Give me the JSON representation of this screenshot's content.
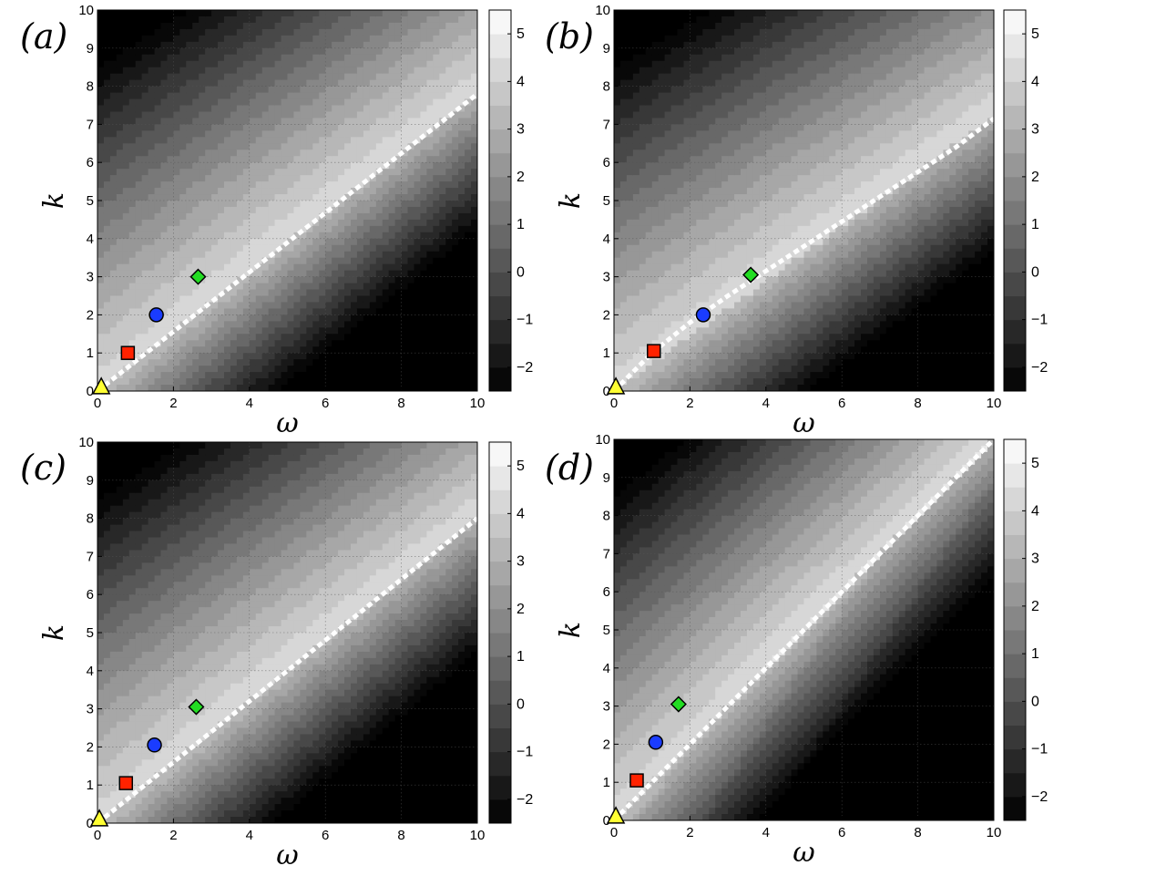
{
  "chart_data": [
    {
      "type": "heatmap",
      "panel_label": "(a)",
      "xlabel": "ω",
      "ylabel": "k",
      "xlim": [
        0,
        10
      ],
      "ylim": [
        0,
        10
      ],
      "x_ticks": [
        "0",
        "2",
        "4",
        "6",
        "8",
        "10"
      ],
      "y_ticks": [
        "0",
        "1",
        "2",
        "3",
        "4",
        "5",
        "6",
        "7",
        "8",
        "9",
        "10"
      ],
      "colorbar": {
        "range": [
          -2.5,
          5.5
        ],
        "ticks": [
          "−2",
          "−1",
          "0",
          "1",
          "2",
          "3",
          "4",
          "5"
        ],
        "levels": [
          -2.5,
          -2,
          -1.5,
          -1,
          -0.5,
          0,
          0.5,
          1,
          1.5,
          2,
          2.5,
          3,
          3.5,
          4,
          4.5,
          5,
          5.5
        ]
      },
      "dispersion_line": {
        "x": [
          0,
          10
        ],
        "y": [
          0,
          7.8
        ]
      },
      "markers": [
        {
          "shape": "triangle",
          "color": "#ffff33",
          "x": 0.1,
          "y": 0.1
        },
        {
          "shape": "square",
          "color": "#ff2200",
          "x": 0.8,
          "y": 1.0
        },
        {
          "shape": "circle",
          "color": "#1a3cff",
          "x": 1.55,
          "y": 2.0
        },
        {
          "shape": "diamond",
          "color": "#22dd22",
          "x": 2.65,
          "y": 3.0
        }
      ],
      "shape_params": {
        "slope": 0.78,
        "low_slope": 1.2,
        "low_offset": 0
      }
    },
    {
      "type": "heatmap",
      "panel_label": "(b)",
      "xlabel": "ω",
      "ylabel": "k",
      "xlim": [
        0,
        10
      ],
      "ylim": [
        0,
        10
      ],
      "x_ticks": [
        "0",
        "2",
        "4",
        "6",
        "8",
        "10"
      ],
      "y_ticks": [
        "0",
        "1",
        "2",
        "3",
        "4",
        "5",
        "6",
        "7",
        "8",
        "9",
        "10"
      ],
      "colorbar": {
        "range": [
          -2.5,
          5.5
        ],
        "ticks": [
          "−2",
          "−1",
          "0",
          "1",
          "2",
          "3",
          "4",
          "5"
        ],
        "levels": [
          -2.5,
          -2,
          -1.5,
          -1,
          -0.5,
          0,
          0.5,
          1,
          1.5,
          2,
          2.5,
          3,
          3.5,
          4,
          4.5,
          5,
          5.5
        ]
      },
      "dispersion_line": {
        "x": [
          0,
          1,
          2,
          3,
          4,
          5,
          6,
          7,
          8,
          9,
          10
        ],
        "y": [
          0,
          1.0,
          1.8,
          2.5,
          3.15,
          3.8,
          4.45,
          5.1,
          5.75,
          6.4,
          7.15
        ]
      },
      "markers": [
        {
          "shape": "triangle",
          "color": "#ffff33",
          "x": 0.05,
          "y": 0.1
        },
        {
          "shape": "square",
          "color": "#ff2200",
          "x": 1.05,
          "y": 1.05
        },
        {
          "shape": "circle",
          "color": "#1a3cff",
          "x": 2.35,
          "y": 2.0
        },
        {
          "shape": "diamond",
          "color": "#22dd22",
          "x": 3.6,
          "y": 3.05
        }
      ],
      "shape_params": {
        "slope": 0.72,
        "low_slope": 2.0,
        "low_offset": 0
      }
    },
    {
      "type": "heatmap",
      "panel_label": "(c)",
      "xlabel": "ω",
      "ylabel": "k",
      "xlim": [
        0,
        10
      ],
      "ylim": [
        0,
        10
      ],
      "x_ticks": [
        "0",
        "2",
        "4",
        "6",
        "8",
        "10"
      ],
      "y_ticks": [
        "0",
        "1",
        "2",
        "3",
        "4",
        "5",
        "6",
        "7",
        "8",
        "9",
        "10"
      ],
      "colorbar": {
        "range": [
          -2.5,
          5.5
        ],
        "ticks": [
          "−2",
          "−1",
          "0",
          "1",
          "2",
          "3",
          "4",
          "5"
        ],
        "levels": [
          -2.5,
          -2,
          -1.5,
          -1,
          -0.5,
          0,
          0.5,
          1,
          1.5,
          2,
          2.5,
          3,
          3.5,
          4,
          4.5,
          5,
          5.5
        ]
      },
      "dispersion_line": {
        "x": [
          0,
          10
        ],
        "y": [
          0,
          8.0
        ]
      },
      "markers": [
        {
          "shape": "triangle",
          "color": "#ffff33",
          "x": 0.05,
          "y": 0.1
        },
        {
          "shape": "square",
          "color": "#ff2200",
          "x": 0.75,
          "y": 1.05
        },
        {
          "shape": "circle",
          "color": "#1a3cff",
          "x": 1.5,
          "y": 2.05
        },
        {
          "shape": "diamond",
          "color": "#22dd22",
          "x": 2.6,
          "y": 3.05
        }
      ],
      "shape_params": {
        "slope": 0.8,
        "low_slope": 1.2,
        "low_offset": 0
      }
    },
    {
      "type": "heatmap",
      "panel_label": "(d)",
      "xlabel": "ω",
      "ylabel": "k",
      "xlim": [
        0,
        10
      ],
      "ylim": [
        0,
        10
      ],
      "x_ticks": [
        "0",
        "2",
        "4",
        "6",
        "8",
        "10"
      ],
      "y_ticks": [
        "0",
        "1",
        "2",
        "3",
        "4",
        "5",
        "6",
        "7",
        "8",
        "9",
        "10"
      ],
      "colorbar": {
        "range": [
          -2.5,
          5.5
        ],
        "ticks": [
          "−2",
          "−1",
          "0",
          "1",
          "2",
          "3",
          "4",
          "5"
        ],
        "levels": [
          -2.5,
          -2,
          -1.5,
          -1,
          -0.5,
          0,
          0.5,
          1,
          1.5,
          2,
          2.5,
          3,
          3.5,
          4,
          4.5,
          5,
          5.5
        ]
      },
      "dispersion_line": {
        "x": [
          0,
          10
        ],
        "y": [
          0,
          10.0
        ]
      },
      "markers": [
        {
          "shape": "triangle",
          "color": "#ffff33",
          "x": 0.05,
          "y": 0.1
        },
        {
          "shape": "square",
          "color": "#ff2200",
          "x": 0.6,
          "y": 1.05
        },
        {
          "shape": "circle",
          "color": "#1a3cff",
          "x": 1.1,
          "y": 2.05
        },
        {
          "shape": "diamond",
          "color": "#22dd22",
          "x": 1.7,
          "y": 3.05
        }
      ],
      "shape_params": {
        "slope": 1.0,
        "low_slope": 1.0,
        "low_offset": 0
      }
    }
  ]
}
